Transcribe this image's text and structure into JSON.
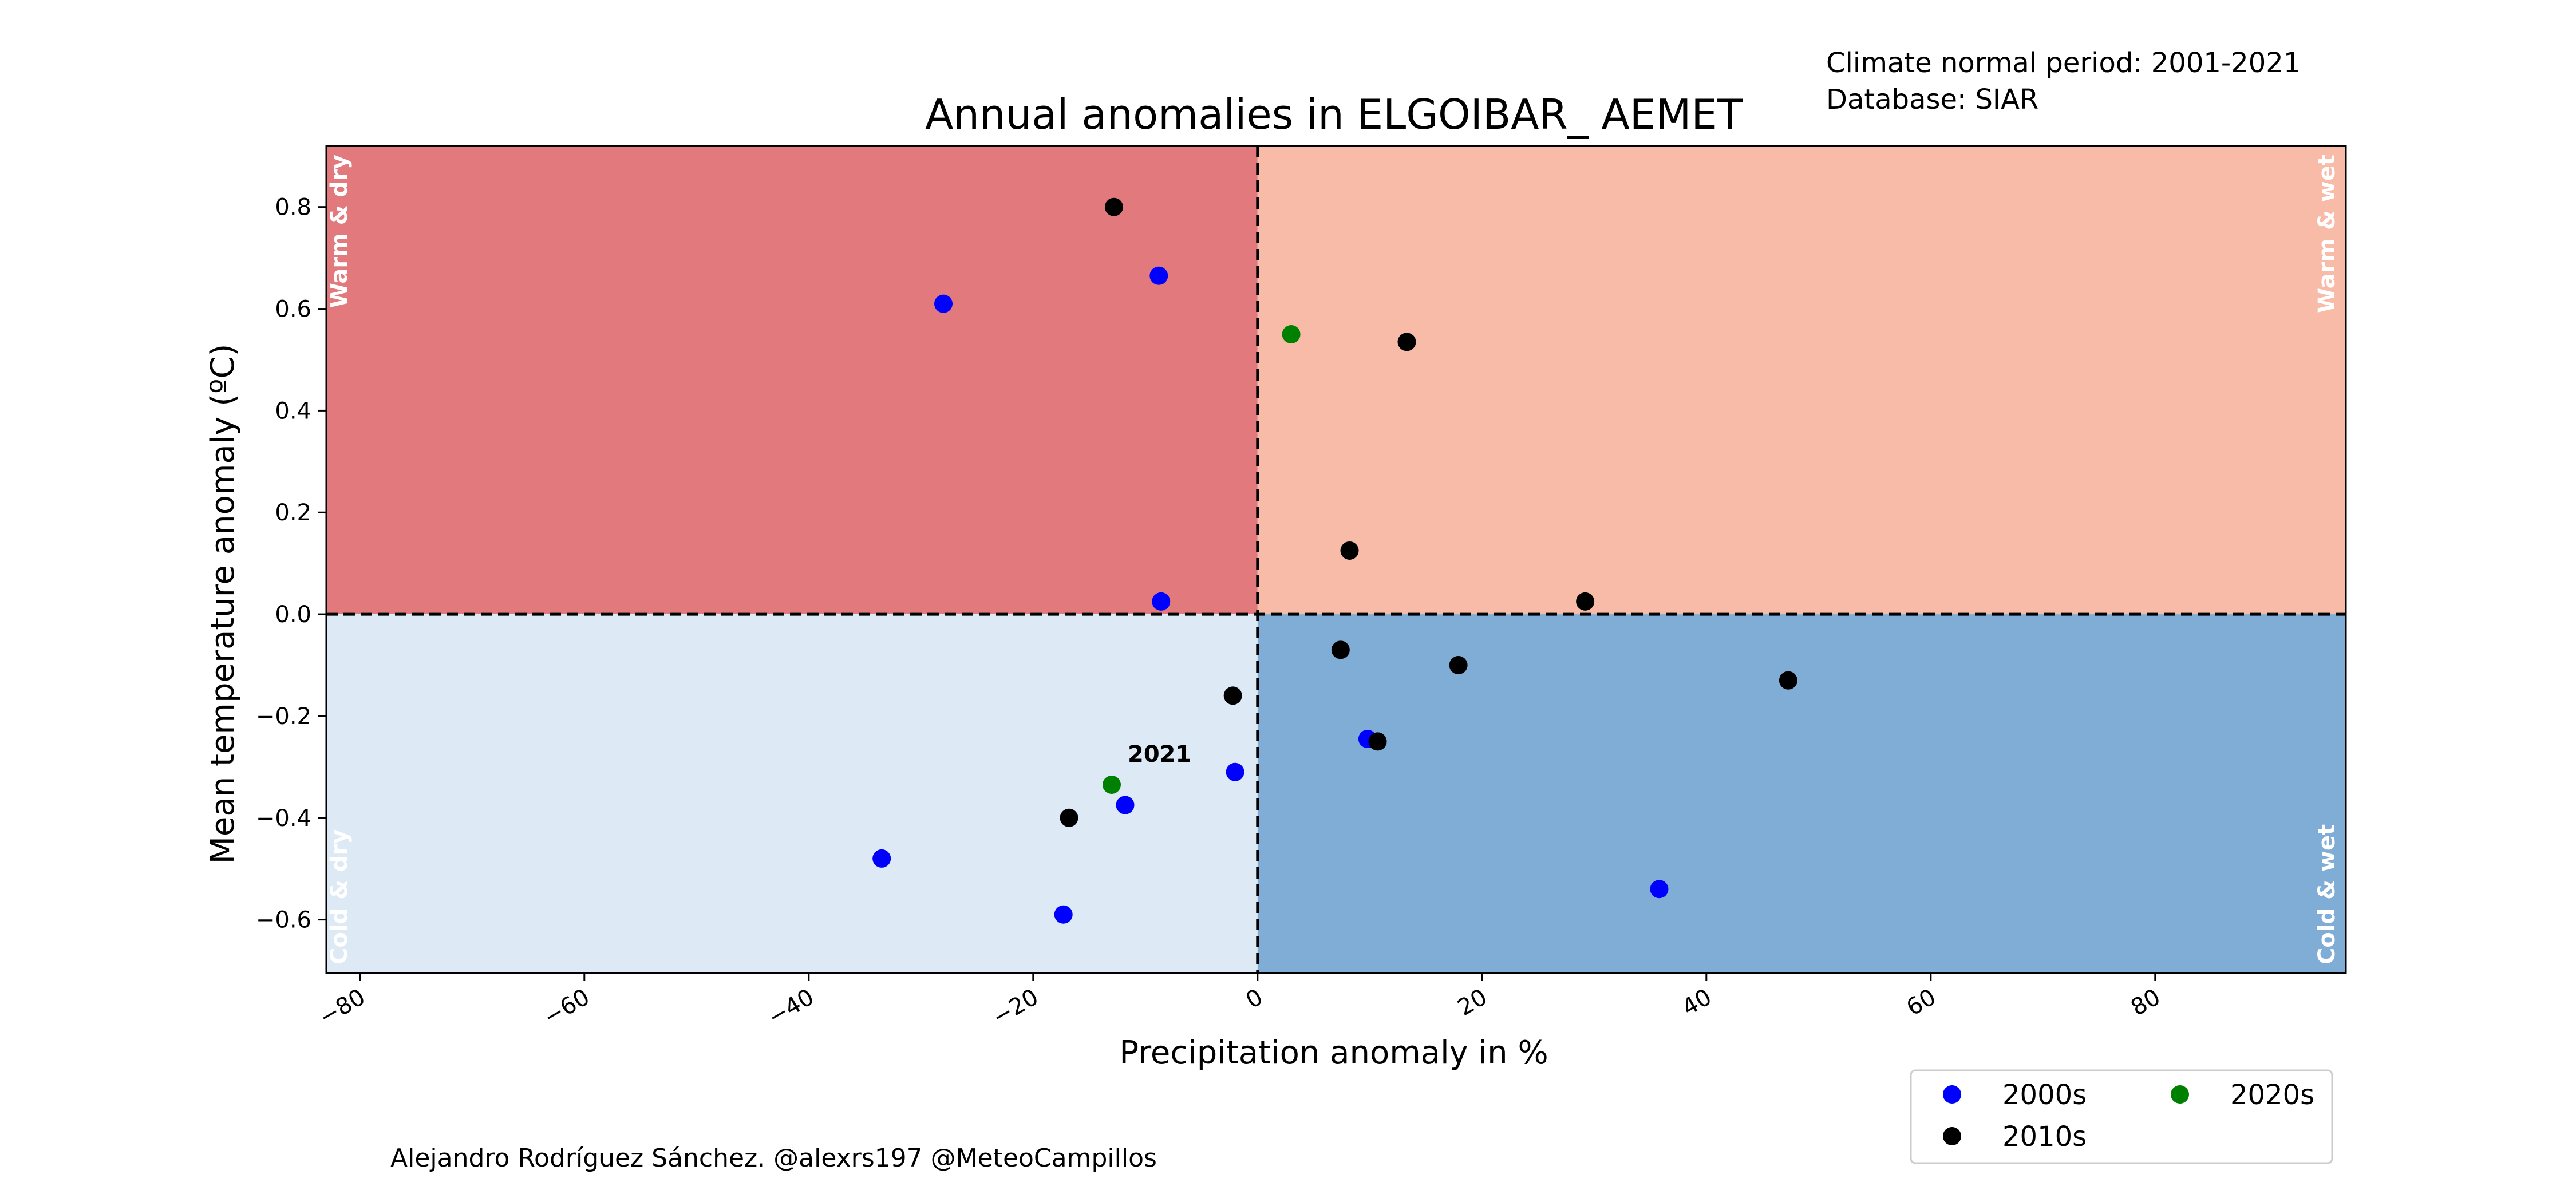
{
  "header": {
    "climate_normal": "Climate normal period: 2001-2021",
    "database": "Database: SIAR"
  },
  "credit": "Alejandro Rodríguez Sánchez. @alexrs197 @MeteoCampillos",
  "chart_data": {
    "type": "scatter",
    "title": "Annual anomalies in ELGOIBAR_ AEMET",
    "xlabel": "Precipitation anomaly in %",
    "ylabel": "Mean temperature anomaly (ºC)",
    "xlim": [
      -83,
      97
    ],
    "ylim": [
      -0.705,
      0.92
    ],
    "x_ticks": [
      -80,
      -60,
      -40,
      -20,
      0,
      20,
      40,
      60,
      80
    ],
    "x_tick_labels": [
      "−80",
      "−60",
      "−40",
      "−20",
      "0",
      "20",
      "40",
      "60",
      "80"
    ],
    "y_ticks": [
      -0.6,
      -0.4,
      -0.2,
      0.0,
      0.2,
      0.4,
      0.6,
      0.8
    ],
    "y_tick_labels": [
      "−0.6",
      "−0.4",
      "−0.2",
      "0.0",
      "0.2",
      "0.4",
      "0.6",
      "0.8"
    ],
    "grid": false,
    "reference_lines": {
      "x": 0,
      "y": 0,
      "style": "dashed"
    },
    "quadrants": [
      {
        "name": "warm-dry",
        "label": "Warm & dry",
        "color": "#e27a7d"
      },
      {
        "name": "warm-wet",
        "label": "Warm & wet",
        "color": "#f7bba8"
      },
      {
        "name": "cold-dry",
        "label": "Cold & dry",
        "color": "#dde9f5"
      },
      {
        "name": "cold-wet",
        "label": "Cold & wet",
        "color": "#80add5"
      }
    ],
    "legend_position": "bottom-right",
    "series": [
      {
        "name": "2000s",
        "color": "#0000ff",
        "points": [
          {
            "x": -28.0,
            "y": 0.61
          },
          {
            "x": -8.8,
            "y": 0.665
          },
          {
            "x": -8.6,
            "y": 0.025
          },
          {
            "x": -33.5,
            "y": -0.48
          },
          {
            "x": -17.3,
            "y": -0.59
          },
          {
            "x": -11.8,
            "y": -0.375
          },
          {
            "x": -2.0,
            "y": -0.31
          },
          {
            "x": 9.8,
            "y": -0.245
          },
          {
            "x": 35.8,
            "y": -0.54
          }
        ]
      },
      {
        "name": "2010s",
        "color": "#000000",
        "points": [
          {
            "x": -12.8,
            "y": 0.8
          },
          {
            "x": 13.3,
            "y": 0.535
          },
          {
            "x": 8.2,
            "y": 0.125
          },
          {
            "x": 29.2,
            "y": 0.025
          },
          {
            "x": 7.4,
            "y": -0.07
          },
          {
            "x": 17.9,
            "y": -0.1
          },
          {
            "x": 47.3,
            "y": -0.13
          },
          {
            "x": -2.2,
            "y": -0.16
          },
          {
            "x": 10.7,
            "y": -0.25
          },
          {
            "x": -16.8,
            "y": -0.4
          }
        ]
      },
      {
        "name": "2020s",
        "color": "#008000",
        "points": [
          {
            "x": 3.0,
            "y": 0.55
          },
          {
            "x": -13.0,
            "y": -0.335
          }
        ]
      }
    ],
    "annotations": [
      {
        "text": "2021",
        "x": -13.0,
        "y": -0.335
      }
    ]
  }
}
